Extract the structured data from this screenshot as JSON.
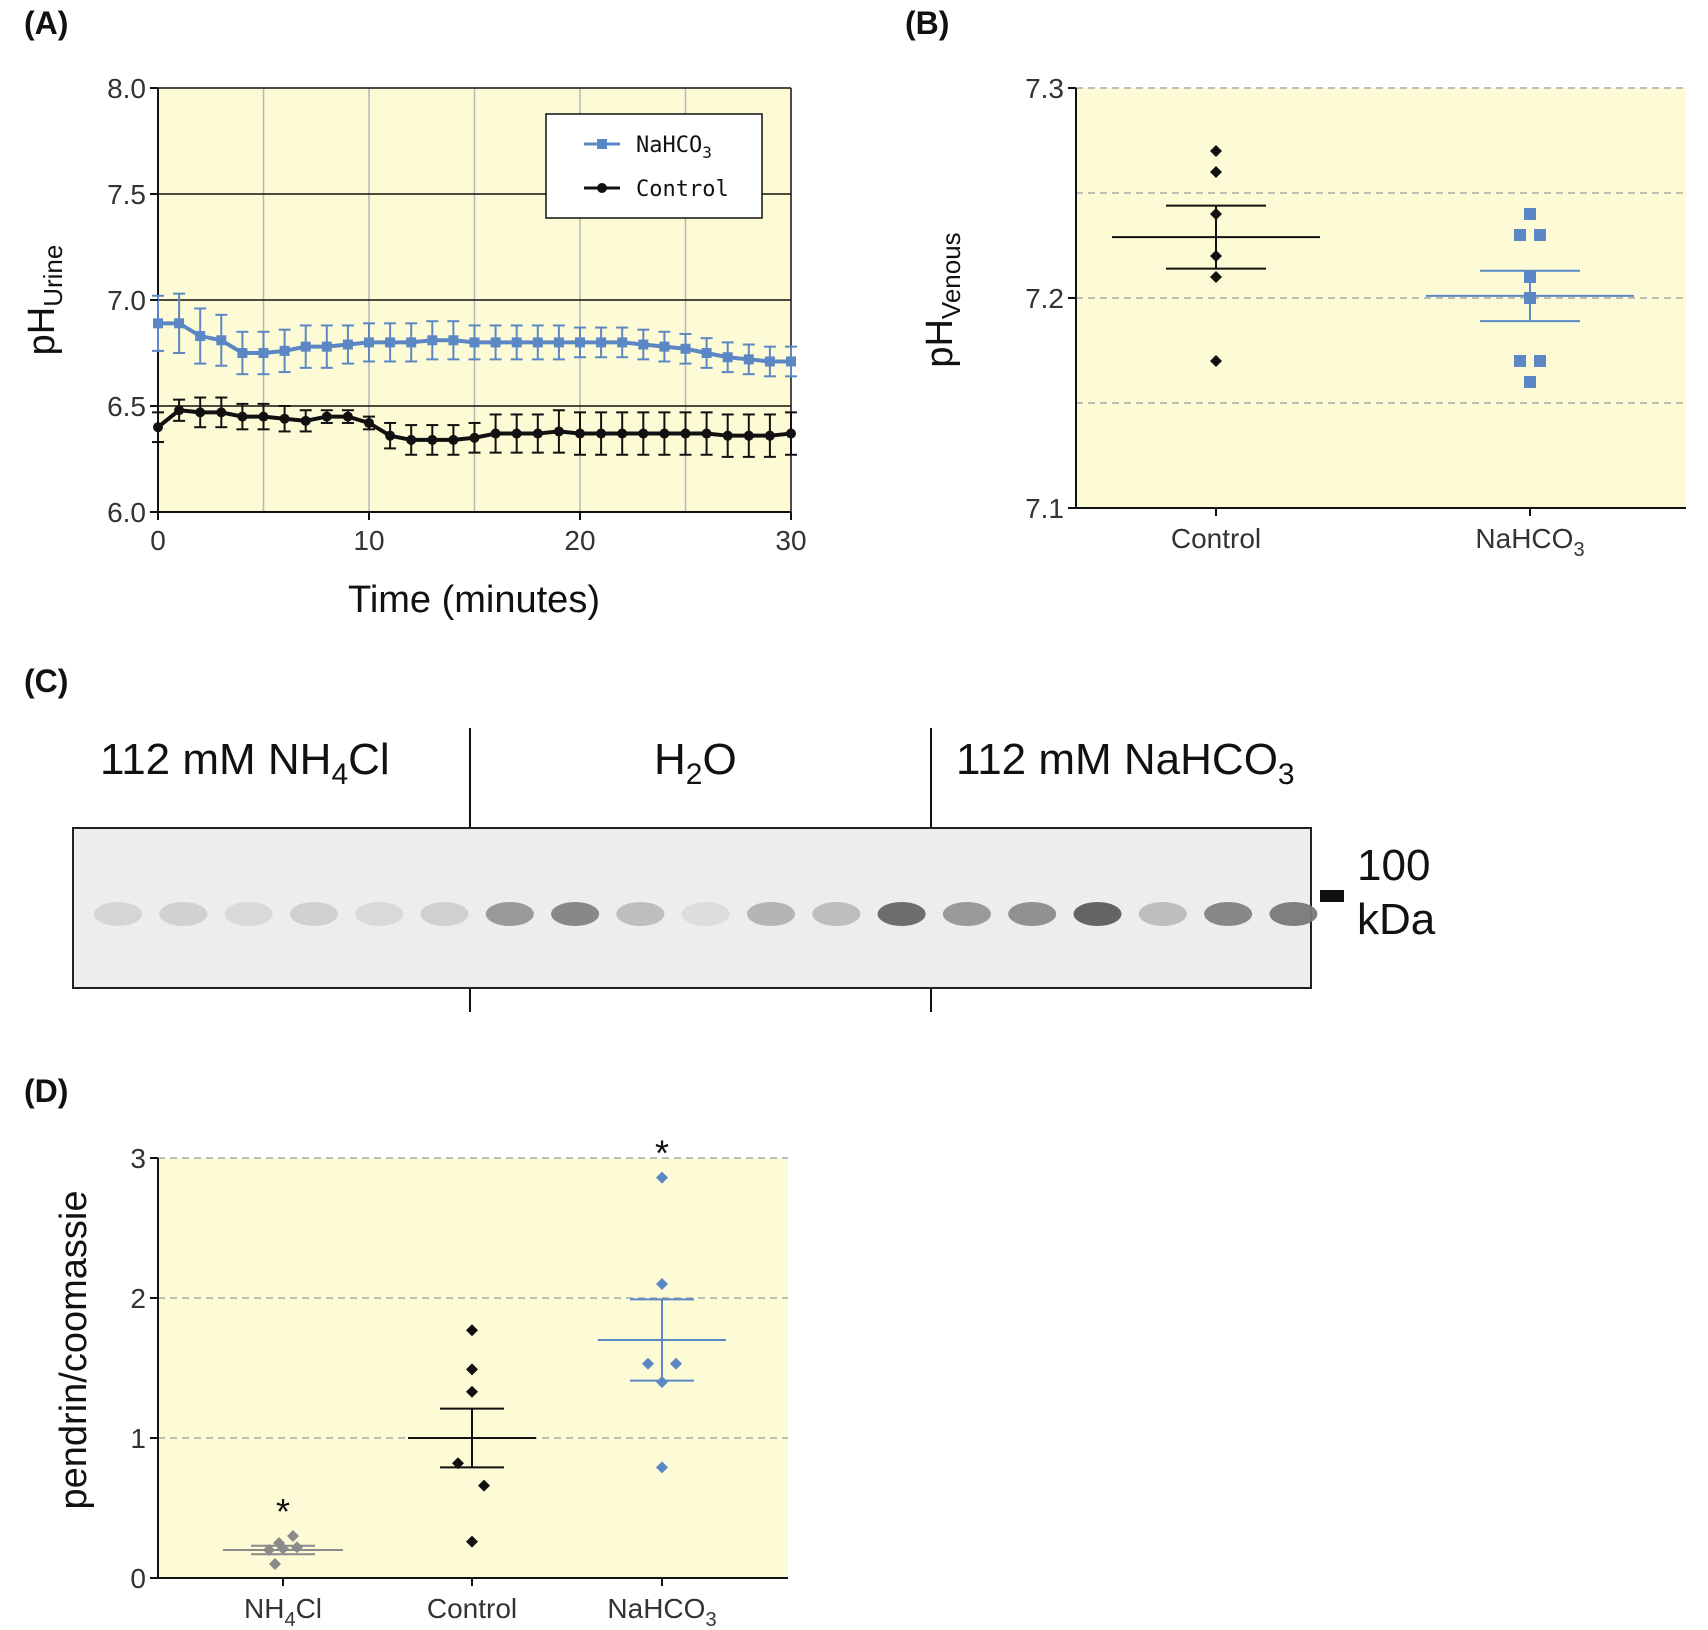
{
  "panels": {
    "A": "(A)",
    "B": "(B)",
    "C": "(C)",
    "D": "(D)"
  },
  "colors": {
    "background": "#fdfbd5",
    "control": "#111111",
    "nahco3": "#5b87c5",
    "nh4cl": "#8a8a8a"
  },
  "chart_data": [
    {
      "id": "A",
      "type": "line",
      "xlabel": "Time (minutes)",
      "ylabel_main": "pH",
      "ylabel_sub": "Urine",
      "xlim": [
        0,
        30
      ],
      "ylim": [
        6.0,
        8.0
      ],
      "xticks": [
        "0",
        "10",
        "20",
        "30"
      ],
      "yticks": [
        "6.0",
        "6.5",
        "7.0",
        "7.5",
        "8.0"
      ],
      "legend": [
        {
          "main": "NaHCO",
          "sub": "3"
        },
        {
          "main": "Control",
          "sub": ""
        }
      ],
      "legend_position": "top-right",
      "x": [
        0,
        1,
        2,
        3,
        4,
        5,
        6,
        7,
        8,
        9,
        10,
        11,
        12,
        13,
        14,
        15,
        16,
        17,
        18,
        19,
        20,
        21,
        22,
        23,
        24,
        25,
        26,
        27,
        28,
        29,
        30
      ],
      "series": [
        {
          "name": "NaHCO3",
          "values": [
            6.89,
            6.89,
            6.83,
            6.81,
            6.75,
            6.75,
            6.76,
            6.78,
            6.78,
            6.79,
            6.8,
            6.8,
            6.8,
            6.81,
            6.81,
            6.8,
            6.8,
            6.8,
            6.8,
            6.8,
            6.8,
            6.8,
            6.8,
            6.79,
            6.78,
            6.77,
            6.75,
            6.73,
            6.72,
            6.71,
            6.71
          ],
          "error": [
            0.13,
            0.14,
            0.13,
            0.12,
            0.1,
            0.1,
            0.1,
            0.1,
            0.1,
            0.09,
            0.09,
            0.09,
            0.09,
            0.09,
            0.09,
            0.08,
            0.08,
            0.08,
            0.08,
            0.08,
            0.07,
            0.07,
            0.07,
            0.07,
            0.07,
            0.07,
            0.07,
            0.07,
            0.07,
            0.07,
            0.07
          ]
        },
        {
          "name": "Control",
          "values": [
            6.4,
            6.48,
            6.47,
            6.47,
            6.45,
            6.45,
            6.44,
            6.43,
            6.45,
            6.45,
            6.42,
            6.36,
            6.34,
            6.34,
            6.34,
            6.35,
            6.37,
            6.37,
            6.37,
            6.38,
            6.37,
            6.37,
            6.37,
            6.37,
            6.37,
            6.37,
            6.37,
            6.36,
            6.36,
            6.36,
            6.37
          ],
          "error": [
            0.07,
            0.05,
            0.07,
            0.07,
            0.06,
            0.06,
            0.06,
            0.05,
            0.03,
            0.03,
            0.03,
            0.06,
            0.07,
            0.07,
            0.07,
            0.07,
            0.09,
            0.09,
            0.09,
            0.1,
            0.1,
            0.1,
            0.1,
            0.1,
            0.1,
            0.1,
            0.1,
            0.1,
            0.1,
            0.1,
            0.1
          ]
        }
      ],
      "grid": true
    },
    {
      "id": "B",
      "type": "scatter",
      "ylabel_main": "pH",
      "ylabel_sub": "Venous",
      "ylim": [
        7.1,
        7.3
      ],
      "yticks": [
        "7.1",
        "7.2",
        "7.3"
      ],
      "categories": [
        {
          "main": "Control",
          "sub": ""
        },
        {
          "main": "NaHCO",
          "sub": "3"
        }
      ],
      "series": [
        {
          "name": "Control",
          "points": [
            7.27,
            7.26,
            7.24,
            7.22,
            7.21,
            7.17
          ],
          "mean": 7.229,
          "sem": 0.015
        },
        {
          "name": "NaHCO3",
          "points": [
            7.24,
            7.23,
            7.23,
            7.21,
            7.2,
            7.17,
            7.17,
            7.16
          ],
          "mean": 7.201,
          "sem": 0.012
        }
      ],
      "grid": "dashed horizontal"
    },
    {
      "id": "D",
      "type": "scatter",
      "ylabel": "pendrin/coomassie",
      "ylim": [
        0,
        3
      ],
      "yticks": [
        "0",
        "1",
        "2",
        "3"
      ],
      "categories": [
        {
          "main": "NH",
          "sub": "4",
          "tail": "Cl"
        },
        {
          "main": "Control",
          "sub": "",
          "tail": ""
        },
        {
          "main": "NaHCO",
          "sub": "3",
          "tail": ""
        }
      ],
      "series": [
        {
          "name": "NH4Cl",
          "points": [
            0.2,
            0.21,
            0.22,
            0.3,
            0.25,
            0.1
          ],
          "mean": 0.2,
          "sem": 0.03,
          "annotation": "*"
        },
        {
          "name": "Control",
          "points": [
            1.77,
            1.49,
            1.33,
            0.82,
            0.66,
            0.26
          ],
          "mean": 1.0,
          "sem": 0.21,
          "annotation": ""
        },
        {
          "name": "NaHCO3",
          "points": [
            2.86,
            2.1,
            1.53,
            1.53,
            1.4,
            0.79
          ],
          "mean": 1.7,
          "sem": 0.29,
          "annotation": "*"
        }
      ],
      "grid": "dashed horizontal"
    }
  ],
  "blot": {
    "groups": [
      {
        "main": "112 mM NH",
        "sub": "4",
        "tail": "Cl"
      },
      {
        "main": "H",
        "sub": "2",
        "tail": "O"
      },
      {
        "main": "112 mM NaHCO",
        "sub": "3",
        "tail": ""
      }
    ],
    "marker_value": "100",
    "marker_unit": "kDa",
    "band_intensity": [
      0.12,
      0.14,
      0.1,
      0.15,
      0.1,
      0.15,
      0.45,
      0.55,
      0.25,
      0.08,
      0.3,
      0.25,
      0.7,
      0.45,
      0.5,
      0.75,
      0.25,
      0.55,
      0.6
    ]
  }
}
